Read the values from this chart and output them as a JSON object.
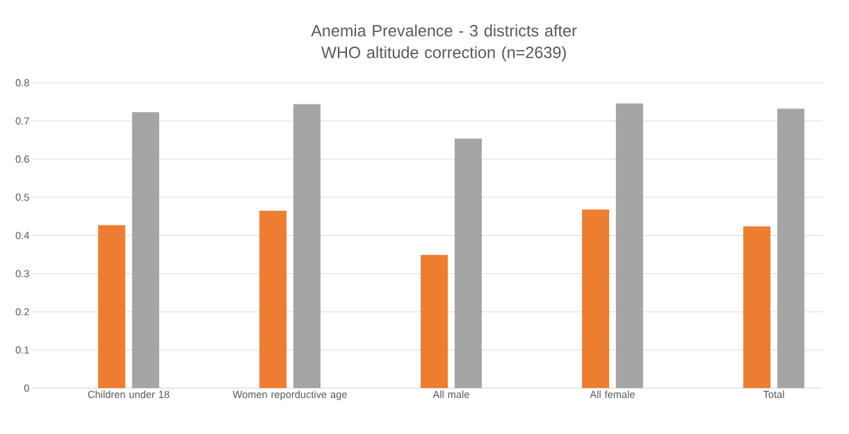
{
  "chart_data": {
    "type": "bar",
    "title": "Anemia Prevalence - 3 districts after WHO altitude correction (n=2639)",
    "categories": [
      "Children under 18",
      "Women reporductive age",
      "All male",
      "All female",
      "Total"
    ],
    "series": [
      {
        "color": "#ed7d31",
        "values": [
          0.427,
          0.465,
          0.349,
          0.468,
          0.424
        ]
      },
      {
        "color": "#a5a5a5",
        "values": [
          0.723,
          0.744,
          0.654,
          0.746,
          0.732
        ]
      }
    ],
    "ylim": [
      0,
      0.8
    ],
    "yticks": [
      0,
      0.1,
      0.2,
      0.3,
      0.4,
      0.5,
      0.6,
      0.7,
      0.8
    ],
    "grid": "y"
  }
}
